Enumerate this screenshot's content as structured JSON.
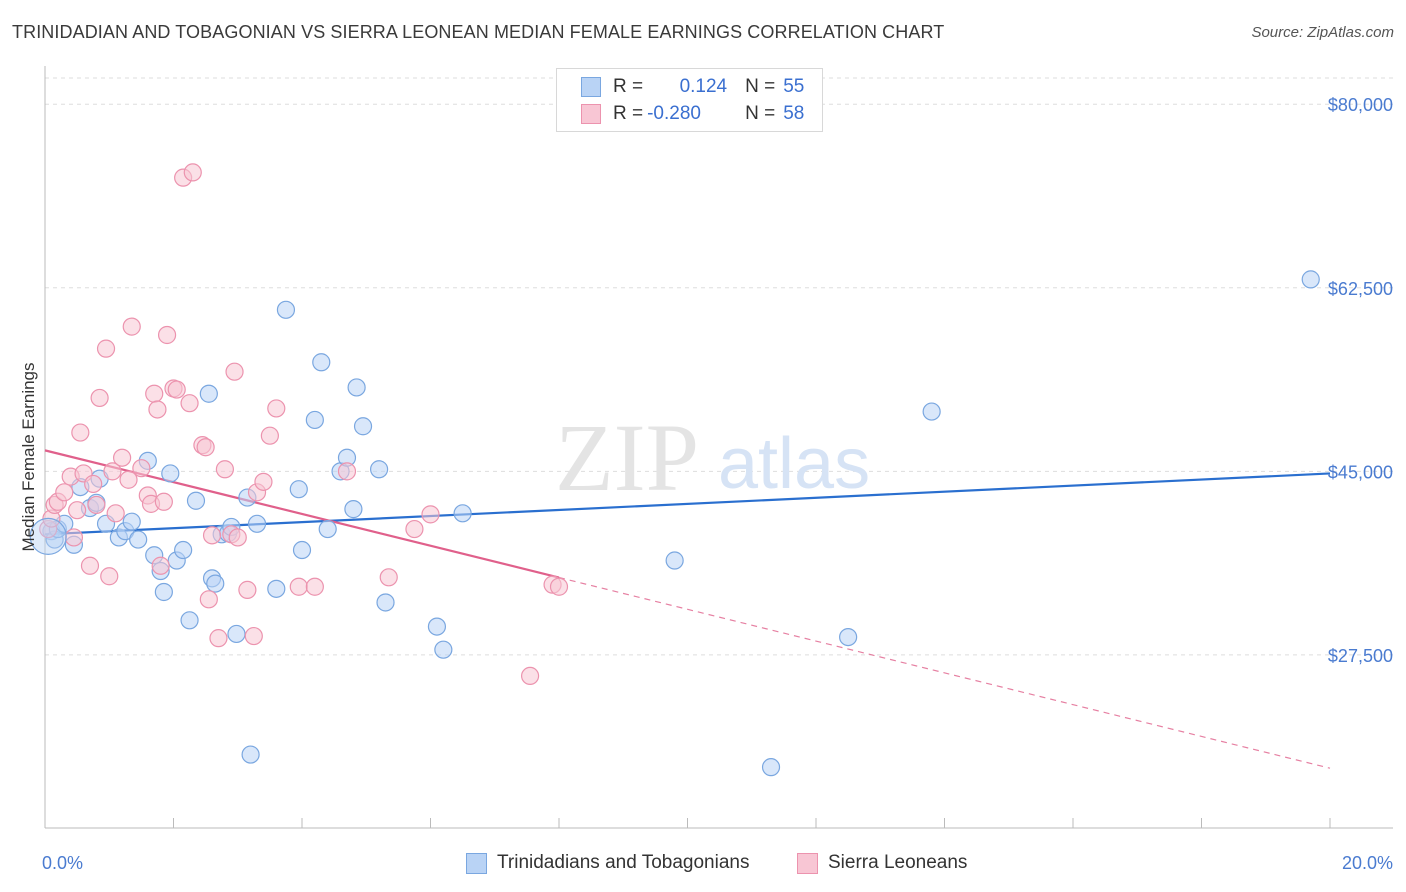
{
  "title": "TRINIDADIAN AND TOBAGONIAN VS SIERRA LEONEAN MEDIAN FEMALE EARNINGS CORRELATION CHART",
  "source": "Source: ZipAtlas.com",
  "watermark": {
    "zip": "ZIP",
    "atlas": "atlas"
  },
  "legend": {
    "r_label": "R =",
    "n_label": "N =",
    "rows": [
      {
        "r": "0.124",
        "n": "55"
      },
      {
        "r": "-0.280",
        "n": "58"
      }
    ]
  },
  "colors": {
    "blue_fill": "#b9d3f5",
    "blue_edge": "#7aa7e0",
    "blue_line": "#2a6fcf",
    "pink_fill": "#f8c6d4",
    "pink_edge": "#ec93ae",
    "pink_line": "#e0608b",
    "tick_text": "#4a7bd0",
    "grid": "#dddddd"
  },
  "chart_data": {
    "type": "scatter",
    "title": "TRINIDADIAN AND TOBAGONIAN VS SIERRA LEONEAN MEDIAN FEMALE EARNINGS CORRELATION CHART",
    "xlabel": "",
    "ylabel": "Median Female Earnings",
    "xlim": [
      0,
      20
    ],
    "ylim": [
      11000,
      82500
    ],
    "x_tick_labels": [
      "0.0%",
      "20.0%"
    ],
    "y_ticks": [
      27500,
      45000,
      62500,
      80000
    ],
    "y_tick_labels": [
      "$27,500",
      "$45,000",
      "$62,500",
      "$80,000"
    ],
    "series": [
      {
        "name": "Trinidadians and Tobagonians",
        "color": "blue",
        "r": 0.124,
        "n": 55,
        "trend": {
          "x": [
            0,
            20
          ],
          "y": [
            39000,
            44800
          ],
          "solid_to": 20
        },
        "points": [
          [
            0.1,
            39300
          ],
          [
            0.15,
            38500
          ],
          [
            0.2,
            39500
          ],
          [
            0.3,
            40000
          ],
          [
            0.45,
            38000
          ],
          [
            0.55,
            43500
          ],
          [
            0.7,
            41500
          ],
          [
            0.8,
            42000
          ],
          [
            0.85,
            44300
          ],
          [
            0.95,
            40000
          ],
          [
            1.15,
            38700
          ],
          [
            1.25,
            39300
          ],
          [
            1.35,
            40200
          ],
          [
            1.45,
            38500
          ],
          [
            1.6,
            46000
          ],
          [
            1.7,
            37000
          ],
          [
            1.8,
            35500
          ],
          [
            1.85,
            33500
          ],
          [
            1.95,
            44800
          ],
          [
            2.05,
            36500
          ],
          [
            2.15,
            37500
          ],
          [
            2.25,
            30800
          ],
          [
            2.35,
            42200
          ],
          [
            2.55,
            52400
          ],
          [
            2.6,
            34800
          ],
          [
            2.65,
            34300
          ],
          [
            2.75,
            39000
          ],
          [
            2.85,
            39100
          ],
          [
            2.9,
            39700
          ],
          [
            2.98,
            29500
          ],
          [
            3.15,
            42500
          ],
          [
            3.2,
            18000
          ],
          [
            3.3,
            40000
          ],
          [
            3.6,
            33800
          ],
          [
            3.75,
            60400
          ],
          [
            3.95,
            43300
          ],
          [
            4.0,
            37500
          ],
          [
            4.2,
            49900
          ],
          [
            4.3,
            55400
          ],
          [
            4.4,
            39500
          ],
          [
            4.6,
            45000
          ],
          [
            4.7,
            46300
          ],
          [
            4.8,
            41400
          ],
          [
            4.85,
            53000
          ],
          [
            4.95,
            49300
          ],
          [
            5.2,
            45200
          ],
          [
            5.3,
            32500
          ],
          [
            6.1,
            30200
          ],
          [
            6.2,
            28000
          ],
          [
            6.5,
            41000
          ],
          [
            9.8,
            36500
          ],
          [
            11.3,
            16800
          ],
          [
            12.5,
            29200
          ],
          [
            13.8,
            50700
          ],
          [
            19.7,
            63300
          ]
        ]
      },
      {
        "name": "Sierra Leoneans",
        "color": "pink",
        "r": -0.28,
        "n": 58,
        "trend": {
          "x": [
            0,
            20
          ],
          "y": [
            47000,
            16700
          ],
          "solid_to": 8.0
        },
        "points": [
          [
            0.05,
            39500
          ],
          [
            0.1,
            40500
          ],
          [
            0.15,
            41800
          ],
          [
            0.2,
            42100
          ],
          [
            0.3,
            43000
          ],
          [
            0.4,
            44500
          ],
          [
            0.45,
            38700
          ],
          [
            0.5,
            41300
          ],
          [
            0.55,
            48700
          ],
          [
            0.6,
            44800
          ],
          [
            0.7,
            36000
          ],
          [
            0.75,
            43800
          ],
          [
            0.8,
            41800
          ],
          [
            0.85,
            52000
          ],
          [
            0.95,
            56700
          ],
          [
            1.0,
            35000
          ],
          [
            1.05,
            45000
          ],
          [
            1.1,
            41000
          ],
          [
            1.2,
            46300
          ],
          [
            1.3,
            44200
          ],
          [
            1.35,
            58800
          ],
          [
            1.5,
            45300
          ],
          [
            1.6,
            42700
          ],
          [
            1.65,
            41900
          ],
          [
            1.7,
            52400
          ],
          [
            1.75,
            50900
          ],
          [
            1.8,
            36000
          ],
          [
            1.85,
            42100
          ],
          [
            1.9,
            58000
          ],
          [
            2.0,
            52900
          ],
          [
            2.05,
            52800
          ],
          [
            2.15,
            73000
          ],
          [
            2.25,
            51500
          ],
          [
            2.3,
            73500
          ],
          [
            2.45,
            47500
          ],
          [
            2.5,
            47300
          ],
          [
            2.55,
            32800
          ],
          [
            2.6,
            38900
          ],
          [
            2.7,
            29100
          ],
          [
            2.8,
            45200
          ],
          [
            2.9,
            39000
          ],
          [
            2.95,
            54500
          ],
          [
            3.0,
            38700
          ],
          [
            3.15,
            33700
          ],
          [
            3.25,
            29300
          ],
          [
            3.3,
            43000
          ],
          [
            3.4,
            44000
          ],
          [
            3.5,
            48400
          ],
          [
            3.6,
            51000
          ],
          [
            3.95,
            34000
          ],
          [
            4.2,
            34000
          ],
          [
            4.7,
            45000
          ],
          [
            5.35,
            34900
          ],
          [
            5.75,
            39500
          ],
          [
            6.0,
            40900
          ],
          [
            7.55,
            25500
          ],
          [
            7.9,
            34200
          ],
          [
            8.0,
            34000
          ]
        ]
      }
    ]
  },
  "bottom_legend": [
    "Trinidadians and Tobagonians",
    "Sierra Leoneans"
  ]
}
